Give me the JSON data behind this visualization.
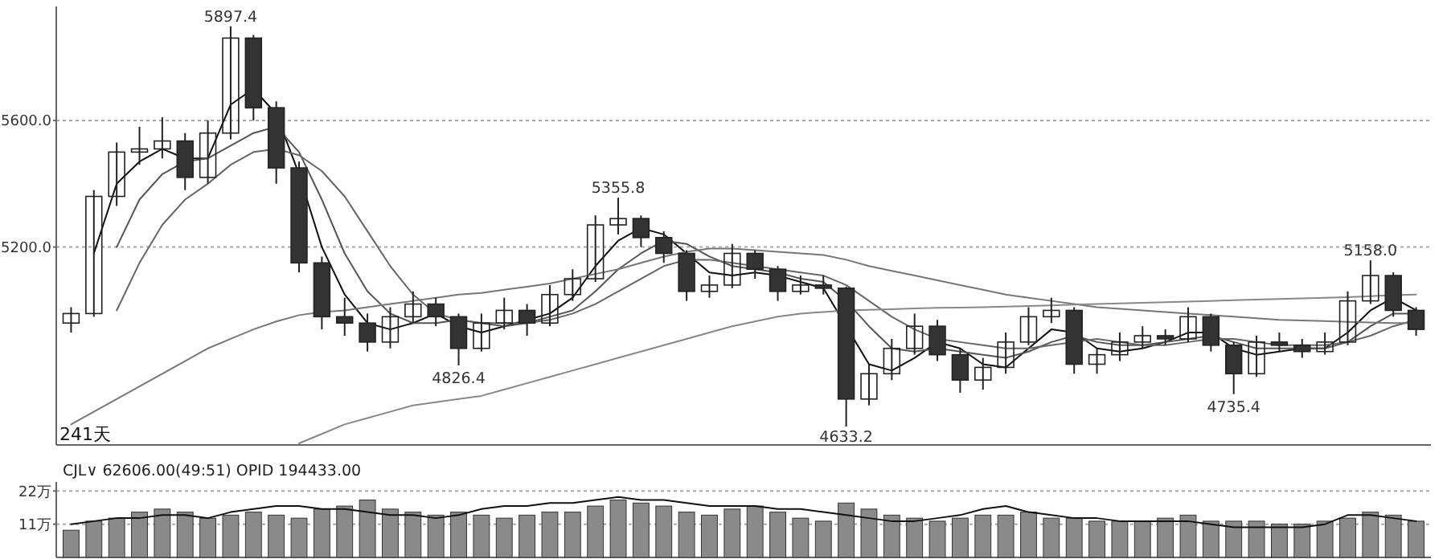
{
  "chart_data": [
    {
      "type": "candlestick",
      "categories": [
        null,
        null,
        null,
        null,
        null,
        null,
        null,
        null,
        null,
        null,
        null,
        null,
        null,
        null,
        null,
        null,
        null,
        null,
        null,
        null,
        null,
        null,
        null,
        null,
        null,
        null,
        null,
        null,
        null,
        null,
        null,
        null,
        null,
        null,
        null,
        null,
        null,
        null,
        null,
        null,
        null,
        null,
        null,
        null,
        null,
        null,
        null,
        null,
        null,
        null,
        null,
        null,
        null,
        null,
        null,
        null,
        null,
        null,
        null,
        null
      ],
      "ohlc": [
        [
          4960,
          5010,
          4930,
          4990
        ],
        [
          4990,
          5380,
          4980,
          5360
        ],
        [
          5360,
          5530,
          5330,
          5500
        ],
        [
          5500,
          5580,
          5460,
          5510
        ],
        [
          5510,
          5610,
          5480,
          5535
        ],
        [
          5535,
          5560,
          5380,
          5420
        ],
        [
          5420,
          5600,
          5400,
          5560
        ],
        [
          5560,
          5897.4,
          5540,
          5860
        ],
        [
          5860,
          5870,
          5600,
          5640
        ],
        [
          5640,
          5660,
          5400,
          5450
        ],
        [
          5450,
          5470,
          5120,
          5150
        ],
        [
          5150,
          5170,
          4940,
          4980
        ],
        [
          4980,
          5040,
          4920,
          4960
        ],
        [
          4960,
          4990,
          4870,
          4900
        ],
        [
          4900,
          5010,
          4880,
          4980
        ],
        [
          4980,
          5060,
          4960,
          5020
        ],
        [
          5020,
          5040,
          4950,
          4980
        ],
        [
          4980,
          4990,
          4826.4,
          4880
        ],
        [
          4880,
          4990,
          4870,
          4960
        ],
        [
          4960,
          5040,
          4940,
          5000
        ],
        [
          5000,
          5020,
          4920,
          4960
        ],
        [
          4960,
          5080,
          4950,
          5050
        ],
        [
          5050,
          5130,
          5030,
          5100
        ],
        [
          5100,
          5300,
          5090,
          5270
        ],
        [
          5270,
          5355.8,
          5240,
          5290
        ],
        [
          5290,
          5300,
          5200,
          5230
        ],
        [
          5230,
          5250,
          5150,
          5180
        ],
        [
          5180,
          5190,
          5030,
          5060
        ],
        [
          5060,
          5110,
          5040,
          5080
        ],
        [
          5080,
          5210,
          5070,
          5180
        ],
        [
          5180,
          5190,
          5100,
          5130
        ],
        [
          5130,
          5140,
          5030,
          5060
        ],
        [
          5060,
          5110,
          5050,
          5080
        ],
        [
          5080,
          5110,
          5050,
          5070
        ],
        [
          5070,
          5075,
          4633.2,
          4720
        ],
        [
          4720,
          4830,
          4700,
          4800
        ],
        [
          4800,
          4910,
          4780,
          4880
        ],
        [
          4880,
          4990,
          4860,
          4950
        ],
        [
          4950,
          4970,
          4840,
          4860
        ],
        [
          4860,
          4880,
          4740,
          4780
        ],
        [
          4780,
          4850,
          4750,
          4820
        ],
        [
          4820,
          4930,
          4800,
          4900
        ],
        [
          4900,
          5010,
          4890,
          4980
        ],
        [
          4980,
          5040,
          4960,
          5000
        ],
        [
          5000,
          5010,
          4800,
          4830
        ],
        [
          4830,
          4880,
          4800,
          4860
        ],
        [
          4860,
          4930,
          4840,
          4900
        ],
        [
          4900,
          4950,
          4880,
          4920
        ],
        [
          4920,
          4940,
          4890,
          4910
        ],
        [
          4910,
          5010,
          4900,
          4980
        ],
        [
          4980,
          4990,
          4870,
          4890
        ],
        [
          4890,
          4900,
          4735.4,
          4800
        ],
        [
          4800,
          4920,
          4790,
          4900
        ],
        [
          4900,
          4930,
          4870,
          4890
        ],
        [
          4890,
          4910,
          4850,
          4870
        ],
        [
          4870,
          4930,
          4860,
          4900
        ],
        [
          4900,
          5060,
          4890,
          5030
        ],
        [
          5030,
          5158.0,
          5020,
          5110
        ],
        [
          5110,
          5120,
          4980,
          5000
        ],
        [
          5000,
          5010,
          4920,
          4940
        ]
      ],
      "series": [
        {
          "type": "line",
          "color": "#111111",
          "values": [
            null,
            5180,
            5400,
            5470,
            5510,
            5480,
            5480,
            5650,
            5700,
            5620,
            5430,
            5200,
            5050,
            4960,
            4940,
            4960,
            4990,
            4950,
            4930,
            4950,
            4970,
            4990,
            5040,
            5140,
            5220,
            5260,
            5240,
            5180,
            5120,
            5110,
            5120,
            5110,
            5090,
            5070,
            4950,
            4830,
            4810,
            4850,
            4900,
            4880,
            4830,
            4820,
            4880,
            4940,
            4930,
            4880,
            4870,
            4880,
            4900,
            4930,
            4930,
            4880,
            4860,
            4870,
            4880,
            4880,
            4930,
            5000,
            5040,
            5000
          ]
        },
        {
          "type": "line",
          "color": "#555555",
          "values": [
            null,
            null,
            5200,
            5350,
            5430,
            5470,
            5480,
            5520,
            5560,
            5580,
            5500,
            5350,
            5180,
            5060,
            4990,
            4960,
            4960,
            4970,
            4960,
            4950,
            4960,
            4980,
            5000,
            5060,
            5130,
            5180,
            5220,
            5210,
            5170,
            5140,
            5130,
            5120,
            5100,
            5090,
            5030,
            4950,
            4880,
            4870,
            4880,
            4870,
            4860,
            4850,
            4870,
            4900,
            4920,
            4900,
            4890,
            4890,
            4900,
            4910,
            4920,
            4900,
            4880,
            4880,
            4880,
            4880,
            4900,
            4950,
            4990,
            4990
          ]
        },
        {
          "type": "line",
          "color": "#666666",
          "values": [
            null,
            null,
            5000,
            5150,
            5270,
            5350,
            5400,
            5460,
            5500,
            5510,
            5490,
            5440,
            5360,
            5250,
            5140,
            5050,
            4990,
            4970,
            4960,
            4960,
            4960,
            4970,
            4990,
            5020,
            5060,
            5100,
            5140,
            5160,
            5160,
            5150,
            5140,
            5130,
            5120,
            5110,
            5080,
            5030,
            4980,
            4940,
            4910,
            4900,
            4890,
            4880,
            4880,
            4890,
            4900,
            4910,
            4900,
            4890,
            4890,
            4900,
            4910,
            4910,
            4900,
            4890,
            4890,
            4890,
            4900,
            4920,
            4950,
            4970
          ]
        },
        {
          "type": "line",
          "color": "#777777",
          "values": [
            4640,
            4680,
            4720,
            4760,
            4800,
            4840,
            4880,
            4910,
            4940,
            4965,
            4985,
            4995,
            5000,
            5010,
            5020,
            5030,
            5040,
            5050,
            5055,
            5065,
            5075,
            5085,
            5100,
            5115,
            5130,
            5150,
            5170,
            5185,
            5195,
            5195,
            5190,
            5185,
            5180,
            5175,
            5160,
            5140,
            5125,
            5110,
            5095,
            5080,
            5065,
            5050,
            5040,
            5030,
            5020,
            5010,
            5005,
            5000,
            4995,
            4990,
            4985,
            4980,
            4975,
            4970,
            4968,
            4966,
            4964,
            4962,
            4960,
            4960
          ]
        },
        {
          "type": "line",
          "color": "#888888",
          "values": [
            null,
            null,
            null,
            null,
            null,
            null,
            null,
            null,
            null,
            null,
            4580,
            4610,
            4640,
            4660,
            4680,
            4700,
            4710,
            4720,
            4730,
            4750,
            4770,
            4790,
            4810,
            4830,
            4850,
            4870,
            4890,
            4910,
            4930,
            4950,
            4965,
            4980,
            4990,
            4995,
            5000,
            5002,
            5004,
            5006,
            5008,
            5009,
            5010,
            5012,
            5014,
            5016,
            5018,
            5020,
            5022,
            5024,
            5026,
            5028,
            5030,
            5032,
            5034,
            5036,
            5038,
            5040,
            5042,
            5045,
            5048,
            5050
          ]
        }
      ],
      "ylim": [
        4575,
        5960
      ],
      "yticks": [
        {
          "value": 5200,
          "label": "5200.0"
        },
        {
          "value": 5600,
          "label": "5600.0"
        }
      ],
      "grid": "y",
      "annotations": [
        {
          "text": "5897.4",
          "y": 5897.4
        },
        {
          "text": "5355.8",
          "y": 5355.8
        },
        {
          "text": "5158.0",
          "y": 5158.0
        },
        {
          "text": "4826.4",
          "y": 4826.4
        },
        {
          "text": "4633.2",
          "y": 4633.2
        },
        {
          "text": "4735.4",
          "y": 4735.4
        },
        "241天"
      ]
    },
    {
      "type": "bar",
      "title": "CJL∨  62606.00(49:51)  OPID 194433.00",
      "categories": [
        null,
        null,
        null,
        null,
        null,
        null,
        null,
        null,
        null,
        null,
        null,
        null,
        null,
        null,
        null,
        null,
        null,
        null,
        null,
        null,
        null,
        null,
        null,
        null,
        null,
        null,
        null,
        null,
        null,
        null,
        null,
        null,
        null,
        null,
        null,
        null,
        null,
        null,
        null,
        null,
        null,
        null,
        null,
        null,
        null,
        null,
        null,
        null,
        null,
        null,
        null,
        null,
        null,
        null,
        null,
        null,
        null,
        null,
        null,
        null
      ],
      "series": [
        {
          "type": "bar",
          "color": "#8a8a8a",
          "values": [
            9,
            12,
            13,
            15,
            16,
            15,
            13,
            14,
            15,
            14,
            13,
            16,
            17,
            19,
            16,
            15,
            14,
            15,
            14,
            13,
            14,
            15,
            15,
            17,
            19,
            18,
            17,
            15,
            14,
            16,
            17,
            15,
            13,
            12,
            18,
            16,
            14,
            13,
            12,
            13,
            14,
            14,
            15,
            13,
            13,
            12,
            12,
            12,
            13,
            14,
            12,
            12,
            12,
            11,
            11,
            12,
            13,
            15,
            14,
            12
          ]
        },
        {
          "type": "line",
          "color": "#111111",
          "values": [
            11,
            12,
            13,
            13,
            14,
            14,
            13,
            15,
            16,
            17,
            17,
            16,
            16,
            15,
            14,
            14,
            13,
            14,
            16,
            17,
            17,
            18,
            18,
            19,
            20,
            19,
            19,
            18,
            17,
            17,
            17,
            16,
            16,
            15,
            14,
            13,
            12,
            12,
            13,
            14,
            16,
            17,
            15,
            14,
            13,
            13,
            12,
            12,
            12,
            12,
            11,
            10,
            10,
            10,
            10,
            11,
            14,
            14,
            13,
            12
          ]
        }
      ],
      "ylim": [
        0,
        25
      ],
      "yticks": [
        {
          "value": 11,
          "label": "11万"
        },
        {
          "value": 22,
          "label": "22万"
        }
      ],
      "grid": "y"
    }
  ]
}
